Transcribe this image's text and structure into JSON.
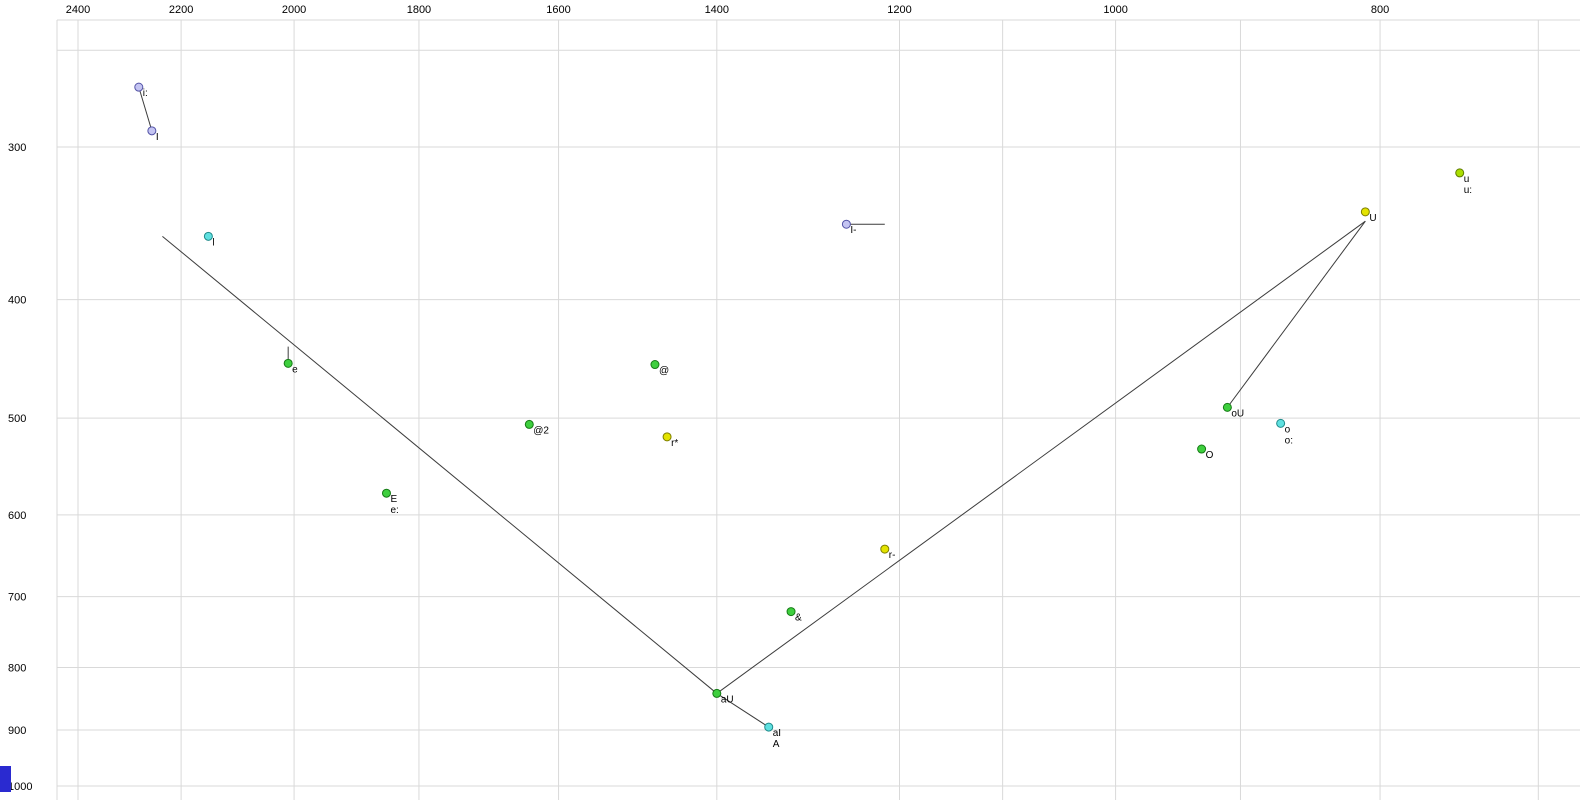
{
  "chart_data": {
    "type": "scatter",
    "description": "Vowel formant plot (F2 horizontal reversed log scale, F1 vertical log scale)",
    "x_axis": {
      "position": "top",
      "scale": "log",
      "reversed": true,
      "tick_labels": [
        2400,
        2200,
        2000,
        1800,
        1600,
        1400,
        1200,
        1000,
        800
      ],
      "grid_values": [
        2400,
        2200,
        2000,
        1800,
        1600,
        1400,
        1200,
        1100,
        1000,
        900,
        800,
        700
      ]
    },
    "y_axis": {
      "position": "left",
      "scale": "log",
      "reversed": false,
      "tick_labels": [
        300,
        400,
        500,
        600,
        700,
        800,
        900,
        1000
      ],
      "grid_values": [
        250,
        300,
        400,
        500,
        600,
        700,
        800,
        900,
        1000
      ]
    },
    "points": [
      {
        "label": "i:",
        "lines": [
          "i:"
        ],
        "f2": 2280,
        "f1": 268,
        "color": "purple"
      },
      {
        "label": "I",
        "lines": [
          "I"
        ],
        "f2": 2255,
        "f1": 291,
        "color": "purple"
      },
      {
        "label": "l",
        "lines": [
          "l"
        ],
        "f2": 2150,
        "f1": 355,
        "color": "cyan"
      },
      {
        "label": "I-",
        "lines": [
          "I-"
        ],
        "f2": 1255,
        "f1": 347,
        "color": "purple"
      },
      {
        "label": "e",
        "lines": [
          "e"
        ],
        "f2": 2010,
        "f1": 451,
        "color": "green"
      },
      {
        "label": "@",
        "lines": [
          "@"
        ],
        "f2": 1475,
        "f1": 452,
        "color": "green"
      },
      {
        "label": "@2",
        "lines": [
          "@2"
        ],
        "f2": 1640,
        "f1": 506,
        "color": "green"
      },
      {
        "label": "r*",
        "lines": [
          "r*"
        ],
        "f2": 1460,
        "f1": 518,
        "color": "yellow"
      },
      {
        "label": "E",
        "lines": [
          "E",
          "e:"
        ],
        "f2": 1850,
        "f1": 576,
        "color": "green"
      },
      {
        "label": "r-",
        "lines": [
          "r-"
        ],
        "f2": 1215,
        "f1": 640,
        "color": "yellow"
      },
      {
        "label": "&",
        "lines": [
          "&"
        ],
        "f2": 1315,
        "f1": 720,
        "color": "green"
      },
      {
        "label": "aU",
        "lines": [
          "aU"
        ],
        "f2": 1400,
        "f1": 840,
        "color": "green"
      },
      {
        "label": "aI",
        "lines": [
          "aI",
          "A"
        ],
        "f2": 1340,
        "f1": 895,
        "color": "cyan"
      },
      {
        "label": "U",
        "lines": [
          "U"
        ],
        "f2": 810,
        "f1": 339,
        "color": "yellow"
      },
      {
        "label": "u:",
        "lines": [
          "u",
          "u:"
        ],
        "f2": 748,
        "f1": 315,
        "color": "yellowgreen"
      },
      {
        "label": "oU",
        "lines": [
          "oU"
        ],
        "f2": 910,
        "f1": 490,
        "color": "green"
      },
      {
        "label": "o:",
        "lines": [
          "o",
          "o:"
        ],
        "f2": 870,
        "f1": 505,
        "color": "cyan"
      },
      {
        "label": "O",
        "lines": [
          "O"
        ],
        "f2": 930,
        "f1": 530,
        "color": "green"
      }
    ],
    "segments": [
      {
        "name": "i-to-I",
        "from": [
          2280,
          268
        ],
        "to": [
          2255,
          291
        ]
      },
      {
        "name": "front-diagonal",
        "from": [
          2235,
          355
        ],
        "to": [
          1400,
          840
        ]
      },
      {
        "name": "back-diagonal",
        "from": [
          1400,
          840
        ],
        "to": [
          810,
          345
        ]
      },
      {
        "name": "U-to-oU",
        "from": [
          810,
          345
        ],
        "to": [
          910,
          490
        ]
      },
      {
        "name": "I-bar-tail",
        "from": [
          1255,
          347
        ],
        "to": [
          1215,
          347
        ]
      },
      {
        "name": "aU-to-aI",
        "from": [
          1400,
          840
        ],
        "to": [
          1340,
          895
        ]
      },
      {
        "name": "e-tick",
        "from": [
          2010,
          437
        ],
        "to": [
          2010,
          452
        ]
      }
    ],
    "marker_colors": {
      "purple": {
        "fill": "#c4c4f2",
        "stroke": "#5252a6"
      },
      "cyan": {
        "fill": "#5fe0e0",
        "stroke": "#1f8a8a"
      },
      "green": {
        "fill": "#3ecf3e",
        "stroke": "#157a15"
      },
      "yellow": {
        "fill": "#e3e300",
        "stroke": "#7d7d00"
      },
      "yellowgreen": {
        "fill": "#aade00",
        "stroke": "#5d7a00"
      }
    },
    "grid_color": "#d9d9d9",
    "line_color": "#3c3c3c",
    "text_color": "#000000",
    "corner_marker_color": "#2a2ad0"
  }
}
